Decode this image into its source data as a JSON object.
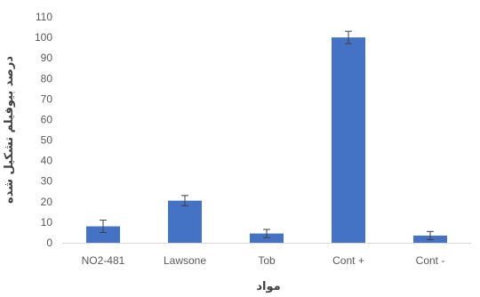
{
  "chart_data": {
    "type": "bar",
    "categories": [
      "NO2-481",
      "Lawsone",
      "Tob",
      "Cont +",
      "Cont -"
    ],
    "values": [
      8,
      20.5,
      4.5,
      100,
      3.5
    ],
    "errors": [
      3,
      2.5,
      2,
      3,
      2
    ],
    "xlabel": "مواد",
    "ylabel": "درصد بیوفیلم تشکیل شده",
    "ylim": [
      0,
      110
    ],
    "yticks": [
      0,
      10,
      20,
      30,
      40,
      50,
      60,
      70,
      80,
      90,
      100,
      110
    ],
    "grid": false,
    "bar_color": "#4472c4",
    "axis_color": "#d9d9d9",
    "errorbar_color": "#404040"
  }
}
